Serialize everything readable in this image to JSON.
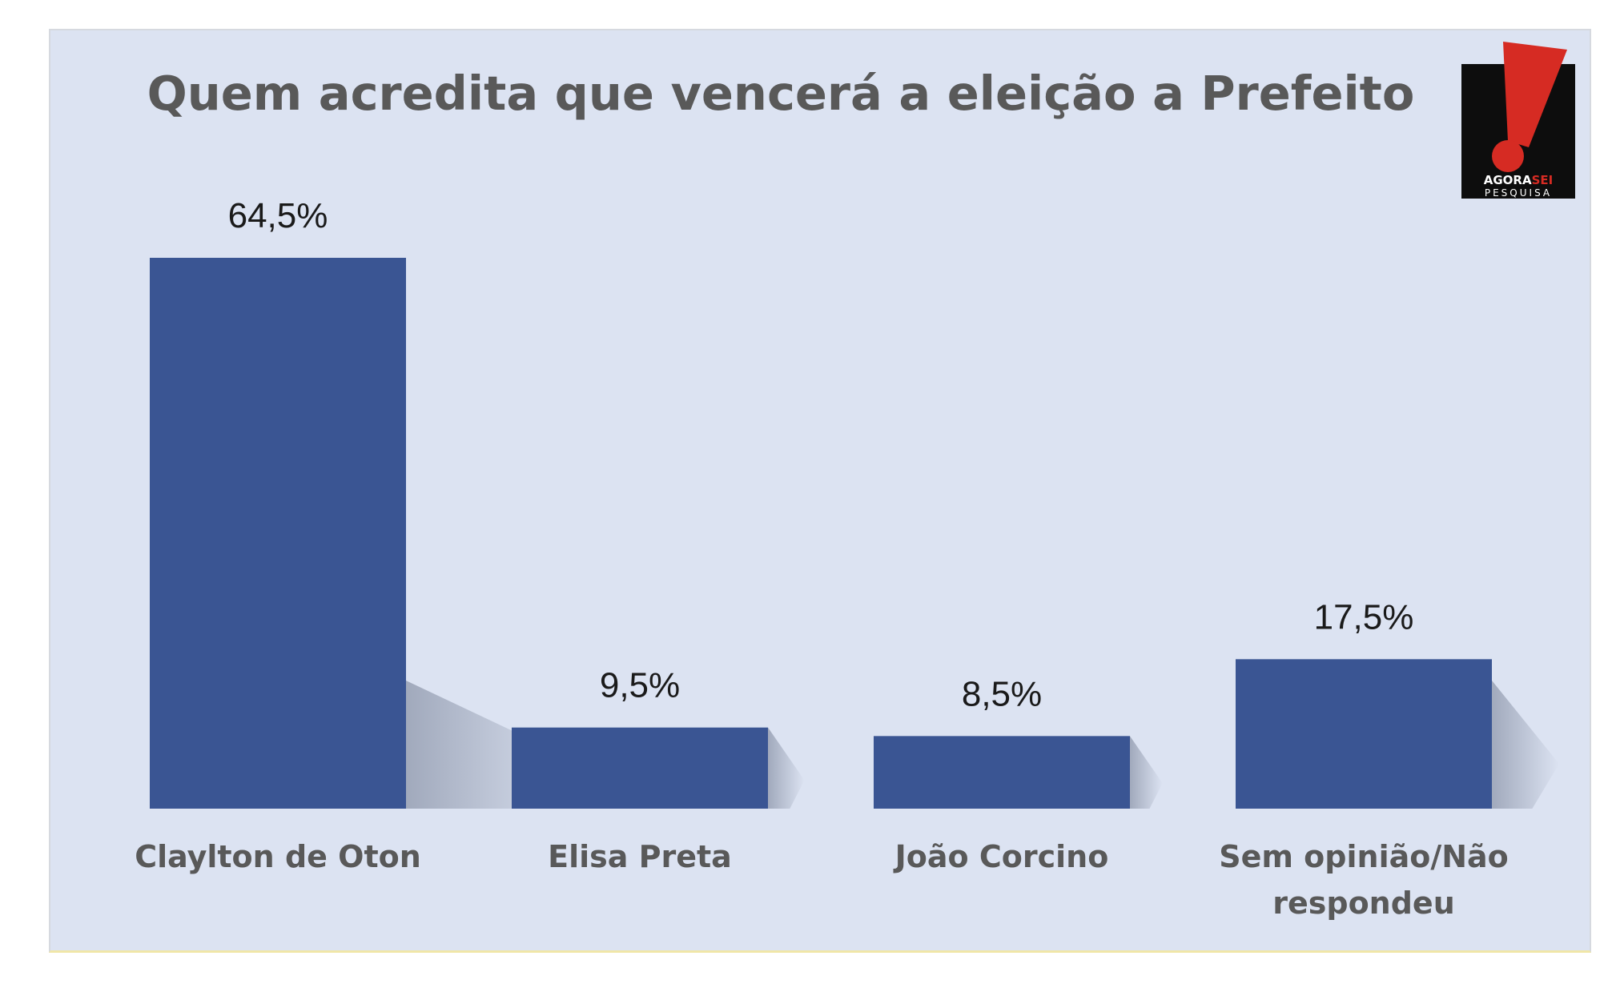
{
  "chart_data": {
    "type": "bar",
    "title": "Quem acredita que vencerá a eleição a Prefeito",
    "categories": [
      "Claylton de Oton",
      "Elisa Preta",
      "João Corcino",
      "Sem opinião/Não respondeu"
    ],
    "category_lines": [
      [
        "Claylton de Oton"
      ],
      [
        "Elisa Preta"
      ],
      [
        "João Corcino"
      ],
      [
        "Sem opinião/Não",
        "respondeu"
      ]
    ],
    "values": [
      64.5,
      9.5,
      8.5,
      17.5
    ],
    "value_labels": [
      "64,5%",
      "9,5%",
      "8,5%",
      "17,5%"
    ],
    "xlabel": "",
    "ylabel": "",
    "ylim": [
      0,
      64.5
    ],
    "grid": false,
    "legend": "none",
    "bar_color": "#3a5593",
    "background_color": "#dce3f2"
  },
  "logo": {
    "brand_line1_a": "AGORA",
    "brand_line1_b": "SEI",
    "brand_line2": "PESQUISA",
    "accent_color": "#d62b23"
  }
}
